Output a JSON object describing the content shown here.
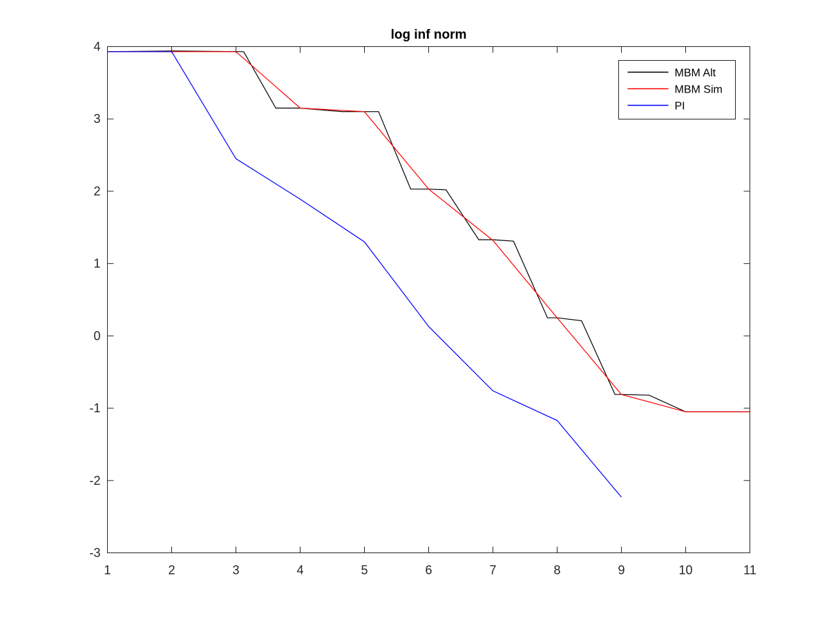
{
  "chart_data": {
    "type": "line",
    "title": "log inf norm",
    "xlabel": "",
    "ylabel": "",
    "xlim": [
      1,
      11
    ],
    "ylim": [
      -3,
      4
    ],
    "xticks": [
      1,
      2,
      3,
      4,
      5,
      6,
      7,
      8,
      9,
      10,
      11
    ],
    "yticks": [
      4,
      3,
      2,
      1,
      0,
      -1,
      -2,
      -3
    ],
    "grid": false,
    "legend_position": "top-right",
    "series": [
      {
        "name": "MBM Alt",
        "color": "#000000",
        "x": [
          1,
          2,
          3.12,
          3.62,
          4,
          4.65,
          5.22,
          5.72,
          6,
          6.27,
          6.78,
          7,
          7.32,
          7.85,
          8,
          8.38,
          8.9,
          9,
          9.43,
          10,
          10.35,
          11
        ],
        "y": [
          3.93,
          3.94,
          3.93,
          3.15,
          3.15,
          3.1,
          3.1,
          2.03,
          2.03,
          2.02,
          1.33,
          1.33,
          1.31,
          0.25,
          0.25,
          0.21,
          -0.81,
          -0.81,
          -0.82,
          -1.05,
          -1.05,
          -1.05
        ]
      },
      {
        "name": "MBM Sim",
        "color": "#ff0000",
        "x": [
          1,
          2,
          3,
          4,
          5,
          6,
          7,
          8,
          9,
          10,
          11
        ],
        "y": [
          3.93,
          3.93,
          3.93,
          3.15,
          3.1,
          2.03,
          1.32,
          0.25,
          -0.81,
          -1.05,
          -1.05
        ]
      },
      {
        "name": "PI",
        "color": "#0000ff",
        "x": [
          1,
          2,
          3,
          4,
          5,
          6,
          7,
          8,
          9
        ],
        "y": [
          3.93,
          3.93,
          2.45,
          1.89,
          1.3,
          0.13,
          -0.76,
          -1.17,
          -2.23
        ]
      }
    ]
  }
}
